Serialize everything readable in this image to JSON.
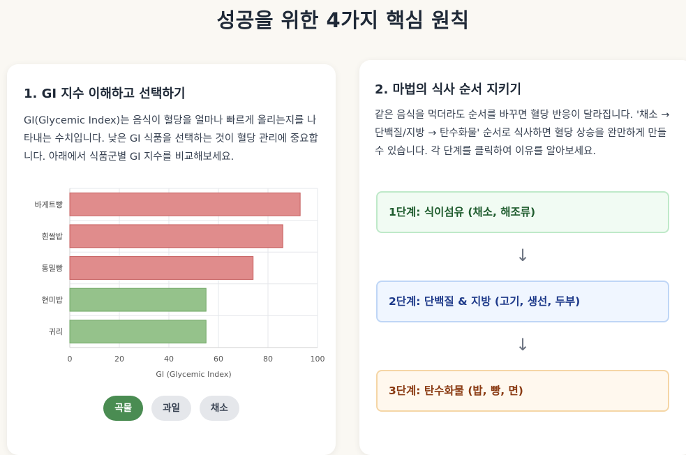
{
  "page": {
    "title": "성공을 위한 4가지 핵심 원칙"
  },
  "section1": {
    "title": "1. GI 지수 이해하고 선택하기",
    "description": "GI(Glycemic Index)는 음식이 혈당을 얼마나 빠르게 올리는지를 나타내는 수치입니다. 낮은 GI 식품을 선택하는 것이 혈당 관리에 중요합니다. 아래에서 식품군별 GI 지수를 비교해보세요.",
    "filters": [
      "곡물",
      "과일",
      "채소"
    ],
    "active_filter": "곡물"
  },
  "chart_data": {
    "type": "bar",
    "orientation": "horizontal",
    "categories": [
      "바게트빵",
      "흰쌀밥",
      "통밀빵",
      "현미밥",
      "귀리"
    ],
    "values": [
      93,
      86,
      74,
      55,
      55
    ],
    "xlabel": "GI (Glycemic Index)",
    "xlim": [
      0,
      100
    ],
    "xticks": [
      0,
      20,
      40,
      60,
      80,
      100
    ],
    "grid": true,
    "colors": {
      "high": "#e08c8c",
      "high_border": "#c65d5d",
      "low": "#95c28b",
      "low_border": "#6fa764"
    }
  },
  "section2": {
    "title": "2. 마법의 식사 순서 지키기",
    "description": "같은 음식을 먹더라도 순서를 바꾸면 혈당 반응이 달라집니다. '채소 → 단백질/지방 → 탄수화물' 순서로 식사하면 혈당 상승을 완만하게 만들 수 있습니다. 각 단계를 클릭하여 이유를 알아보세요.",
    "steps": [
      {
        "label": "1단계: 식이섬유 (채소, 해조류)"
      },
      {
        "label": "2단계: 단백질 & 지방 (고기, 생선, 두부)"
      },
      {
        "label": "3단계: 탄수화물 (밥, 빵, 면)"
      }
    ],
    "arrow": "↓"
  }
}
